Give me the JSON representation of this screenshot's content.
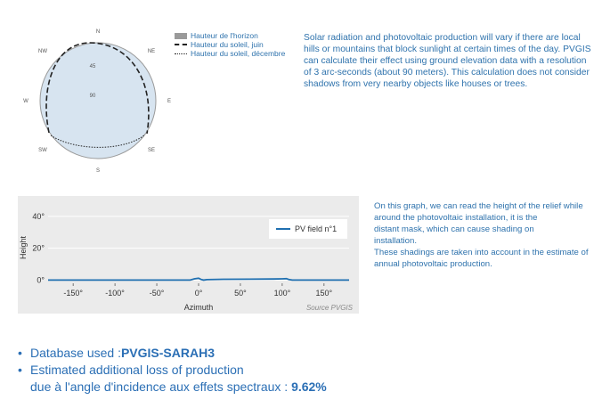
{
  "horizon_chart": {
    "compass": {
      "N": "N",
      "NE": "NE",
      "E": "E",
      "SE": "SE",
      "S": "S",
      "SW": "SW",
      "W": "W",
      "NW": "NW"
    },
    "rings": [
      "45",
      "90"
    ],
    "legend": [
      "Hauteur de l'horizon",
      "Hauteur du soleil, juin",
      "Hauteur du soleil, décembre"
    ],
    "colors": {
      "disc": "#d7e4f0",
      "border": "#9a9a9a",
      "label": "#555555"
    }
  },
  "intro_text": "Solar radiation and photovoltaic production will vary if there are local hills or mountains that block sunlight at certain times of the day. PVGIS can calculate their effect using ground elevation data with a resolution of 3 arc-seconds (about 90 meters). This calculation does not consider shadows from very nearby objects like houses or trees.",
  "chart_data": {
    "type": "line",
    "title": "",
    "xlabel": "Azimuth",
    "ylabel": "Height",
    "xlim": [
      -180,
      180
    ],
    "ylim": [
      -2,
      45
    ],
    "xticks": [
      -150,
      -100,
      -50,
      0,
      50,
      100,
      150
    ],
    "yticks": [
      0,
      20,
      40
    ],
    "x_tick_labels": [
      "-150°",
      "-100°",
      "-50°",
      "0°",
      "50°",
      "100°",
      "150°"
    ],
    "y_tick_labels": [
      "0°",
      "20°",
      "40°"
    ],
    "grid": "horizontal",
    "legend_position": "top-right",
    "credit": "Source PVGIS",
    "series": [
      {
        "name": "PV field n°1",
        "color": "#1f6fb0",
        "x": [
          -180,
          -10,
          -5,
          0,
          3,
          6,
          10,
          30,
          60,
          90,
          100,
          105,
          108,
          112,
          120,
          180
        ],
        "y": [
          0,
          0,
          0.8,
          1.2,
          0.4,
          0,
          0.3,
          0.5,
          0.6,
          0.7,
          0.8,
          0.9,
          0.4,
          0,
          0,
          0
        ]
      }
    ]
  },
  "graph_description": [
    "On this graph, we can read the height of the relief while",
    "around the photovoltaic installation, it is the",
    "distant mask, which can cause shading on",
    "installation.",
    "These shadings are taken into account in the estimate of",
    "annual photovoltaic production."
  ],
  "bullets": {
    "database_label": "Database used : ",
    "database_value": "PVGIS-SARAH3",
    "loss_label_1": "Estimated additional loss of production",
    "loss_label_2": "due à l'angle d'incidence aux effets spectraux : ",
    "loss_value": "9.62%"
  }
}
